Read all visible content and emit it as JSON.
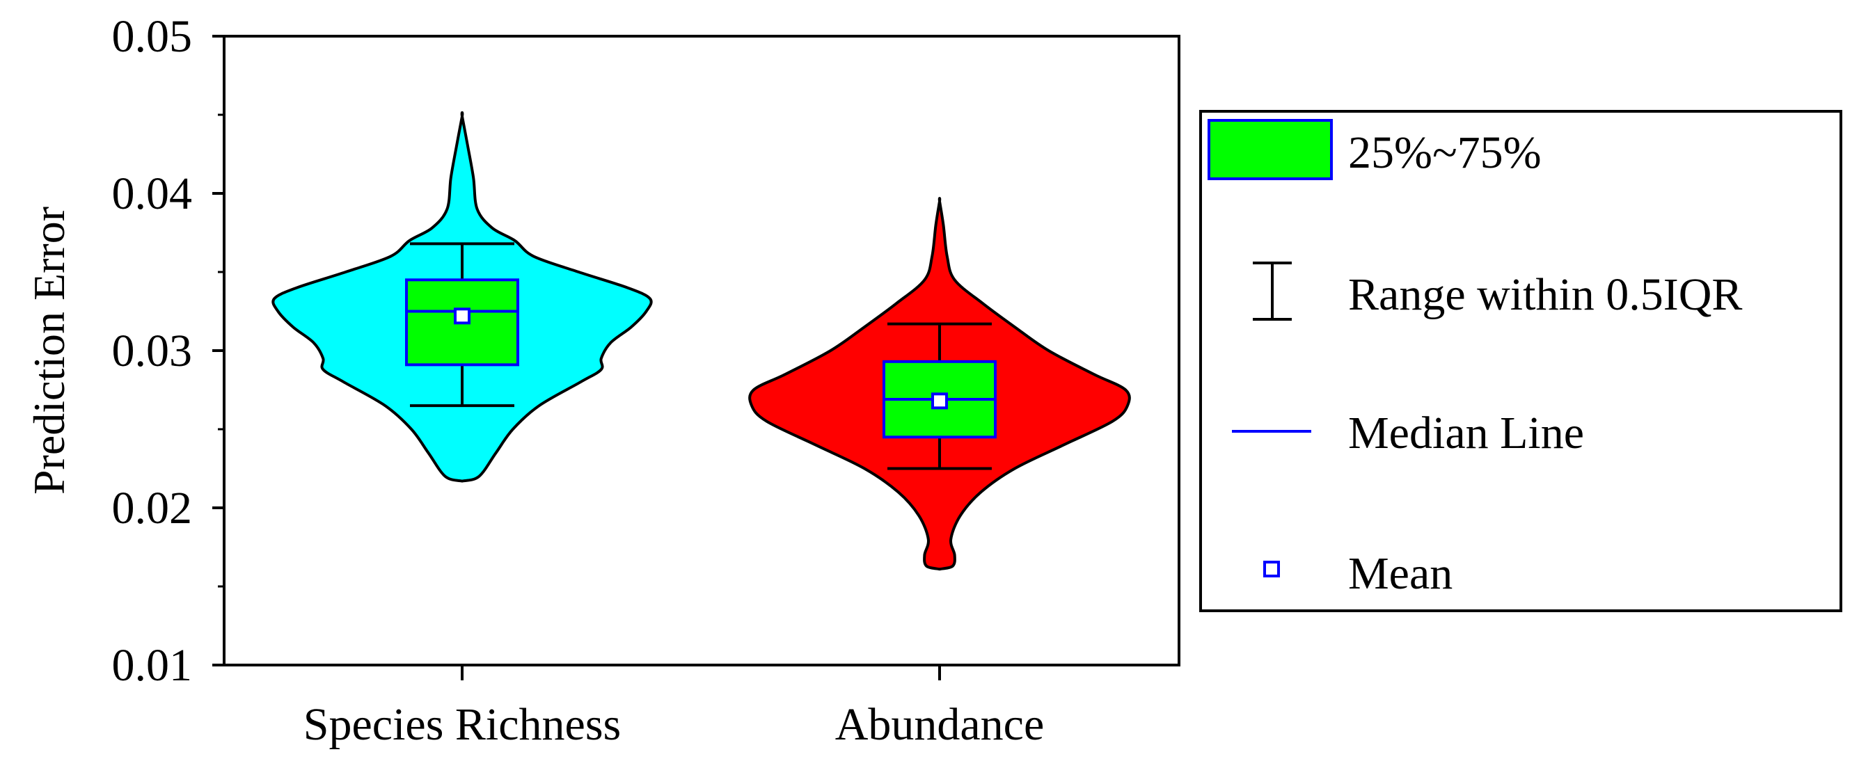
{
  "chart_data": {
    "type": "violin",
    "ylabel": "Prediction Error",
    "ylim": [
      0.01,
      0.05
    ],
    "yticks": [
      "0.01",
      "0.02",
      "0.03",
      "0.04",
      "0.05"
    ],
    "categories": [
      "Species Richness",
      "Abundance"
    ],
    "series": [
      {
        "category": "Species Richness",
        "color": "#00ffff",
        "box_color": "#00ff00",
        "min": 0.0217,
        "max": 0.0449,
        "q1": 0.0291,
        "median": 0.0325,
        "q3": 0.0345,
        "mean": 0.0322,
        "whisker_low": 0.0265,
        "whisker_high": 0.0368,
        "density_profile": [
          [
            0.0217,
            0.0
          ],
          [
            0.022,
            0.09
          ],
          [
            0.0235,
            0.18
          ],
          [
            0.025,
            0.27
          ],
          [
            0.0265,
            0.41
          ],
          [
            0.028,
            0.63
          ],
          [
            0.0288,
            0.74
          ],
          [
            0.0295,
            0.74
          ],
          [
            0.0305,
            0.79
          ],
          [
            0.0315,
            0.9
          ],
          [
            0.0325,
            0.98
          ],
          [
            0.0333,
            1.0
          ],
          [
            0.034,
            0.88
          ],
          [
            0.035,
            0.62
          ],
          [
            0.036,
            0.38
          ],
          [
            0.037,
            0.28
          ],
          [
            0.0378,
            0.16
          ],
          [
            0.039,
            0.08
          ],
          [
            0.041,
            0.06
          ],
          [
            0.043,
            0.03
          ],
          [
            0.0449,
            0.0
          ]
        ]
      },
      {
        "category": "Abundance",
        "color": "#ff0000",
        "box_color": "#00ff00",
        "min": 0.0161,
        "max": 0.0395,
        "q1": 0.0245,
        "median": 0.0269,
        "q3": 0.0293,
        "mean": 0.0268,
        "whisker_low": 0.0225,
        "whisker_high": 0.0317,
        "density_profile": [
          [
            0.0161,
            0.0
          ],
          [
            0.0163,
            0.07
          ],
          [
            0.017,
            0.08
          ],
          [
            0.018,
            0.06
          ],
          [
            0.0195,
            0.11
          ],
          [
            0.021,
            0.22
          ],
          [
            0.0225,
            0.4
          ],
          [
            0.024,
            0.66
          ],
          [
            0.0255,
            0.92
          ],
          [
            0.0265,
            1.0
          ],
          [
            0.0275,
            0.99
          ],
          [
            0.0285,
            0.82
          ],
          [
            0.03,
            0.58
          ],
          [
            0.0315,
            0.4
          ],
          [
            0.033,
            0.23
          ],
          [
            0.0345,
            0.08
          ],
          [
            0.036,
            0.04
          ],
          [
            0.038,
            0.02
          ],
          [
            0.0395,
            0.0
          ]
        ]
      }
    ],
    "legend": {
      "position": "right",
      "items": [
        {
          "label": "25%~75%",
          "symbol": "box"
        },
        {
          "label": "Range within 0.5IQR",
          "symbol": "whisker"
        },
        {
          "label": "Median Line",
          "symbol": "line"
        },
        {
          "label": "Mean",
          "symbol": "square-marker"
        }
      ]
    },
    "colors": {
      "box_fill": "#00ff00",
      "box_edge": "#0000ff",
      "median_line": "#0000ff",
      "mean_marker": "#0000ff",
      "whisker": "#000000"
    }
  }
}
